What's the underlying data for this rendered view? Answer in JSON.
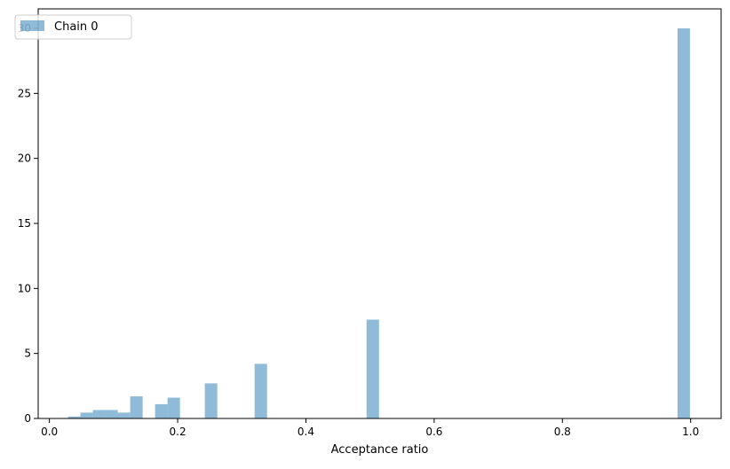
{
  "chart_data": {
    "type": "bar",
    "title": "",
    "xlabel": "Acceptance ratio",
    "ylabel": "",
    "xlim": [
      -0.0175,
      1.0475
    ],
    "ylim": [
      0,
      31.5
    ],
    "xticks": [
      0.0,
      0.2,
      0.4,
      0.6,
      0.8,
      1.0
    ],
    "xtick_labels": [
      "0.0",
      "0.2",
      "0.4",
      "0.6",
      "0.8",
      "1.0"
    ],
    "yticks": [
      0,
      5,
      10,
      15,
      20,
      25,
      30
    ],
    "ytick_labels": [
      "0",
      "5",
      "10",
      "15",
      "20",
      "25",
      "30"
    ],
    "grid": false,
    "legend": {
      "position": "top-left",
      "entries": [
        "Chain 0"
      ]
    },
    "series": [
      {
        "name": "Chain 0",
        "color": "#1f77b4",
        "opacity": 0.5,
        "bin_width": 0.0194,
        "bins": [
          {
            "x": 0.029,
            "value": 0.15
          },
          {
            "x": 0.0484,
            "value": 0.45
          },
          {
            "x": 0.0678,
            "value": 0.65
          },
          {
            "x": 0.0872,
            "value": 0.65
          },
          {
            "x": 0.1066,
            "value": 0.45
          },
          {
            "x": 0.126,
            "value": 1.7
          },
          {
            "x": 0.1648,
            "value": 1.1
          },
          {
            "x": 0.1842,
            "value": 1.6
          },
          {
            "x": 0.2424,
            "value": 2.7
          },
          {
            "x": 0.32,
            "value": 4.2
          },
          {
            "x": 0.4946,
            "value": 7.6
          },
          {
            "x": 0.9795,
            "value": 30.0
          }
        ]
      }
    ]
  }
}
